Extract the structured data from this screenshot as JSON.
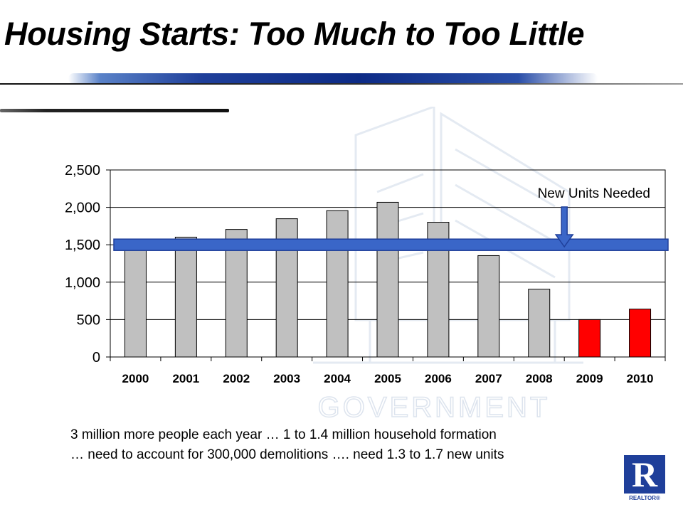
{
  "slide": {
    "title": "Housing Starts: Too Much to Too Little",
    "watermark_text": "GOVERNMENT",
    "note_lines": [
      "3 million more people each year … 1 to 1.4 million household formation",
      "… need to account for 300,000 demolitions …. need 1.3 to 1.7 new units"
    ],
    "logo": {
      "letter": "R",
      "word": "REALTOR®"
    }
  },
  "chart_data": {
    "type": "bar",
    "title": "",
    "xlabel": "",
    "ylabel": "",
    "categories": [
      "2000",
      "2001",
      "2002",
      "2003",
      "2004",
      "2005",
      "2006",
      "2007",
      "2008",
      "2009",
      "2010"
    ],
    "values": [
      1568,
      1602,
      1705,
      1848,
      1956,
      2068,
      1801,
      1355,
      906,
      500,
      640
    ],
    "bar_colors": [
      "#c0c0c0",
      "#c0c0c0",
      "#c0c0c0",
      "#c0c0c0",
      "#c0c0c0",
      "#c0c0c0",
      "#c0c0c0",
      "#c0c0c0",
      "#c0c0c0",
      "#ff0000",
      "#ff0000"
    ],
    "ylim": [
      0,
      2500
    ],
    "yticks": [
      0,
      500,
      1000,
      1500,
      2000,
      2500
    ],
    "ytick_labels": [
      "0",
      "500",
      "1,000",
      "1,500",
      "2,000",
      "2,500"
    ],
    "grid": true,
    "reference_band": {
      "label": "New Units Needed",
      "value": 1500,
      "color": "#3a66c8"
    },
    "arrow_x_category": "2009"
  }
}
